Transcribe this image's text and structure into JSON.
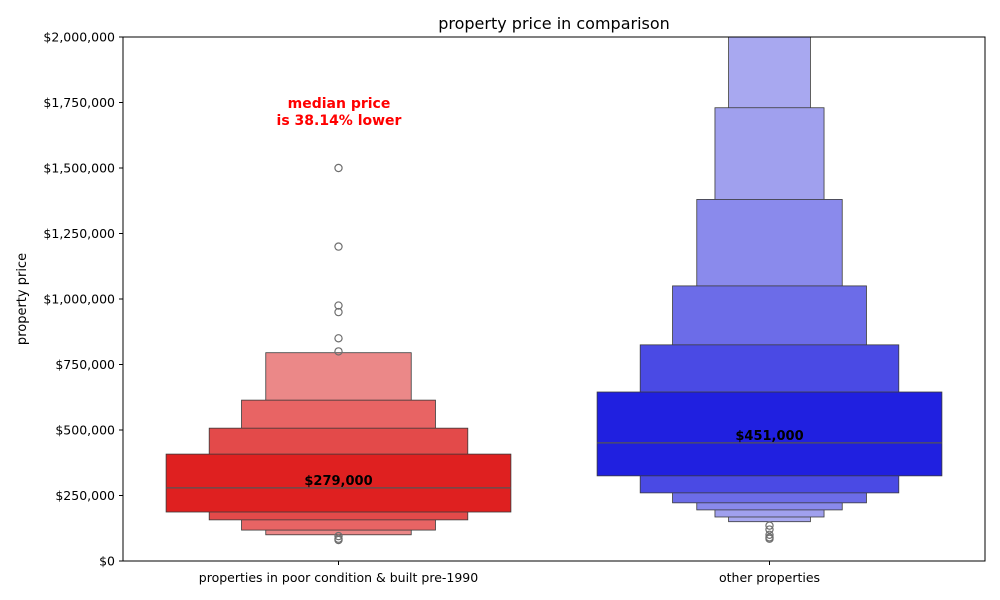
{
  "chart_data": {
    "type": "boxen",
    "title": "property price in comparison",
    "xlabel": "",
    "ylabel": "property price",
    "ylim": [
      0,
      2000000
    ],
    "yticks": [
      0,
      250000,
      500000,
      750000,
      1000000,
      1250000,
      1500000,
      1750000,
      2000000
    ],
    "ytick_labels": [
      "$0",
      "$250,000",
      "$500,000",
      "$750,000",
      "$1,000,000",
      "$1,250,000",
      "$1,500,000",
      "$1,750,000",
      "$2,000,000"
    ],
    "grid": false,
    "annotation": "median price\nis 38.14% lower",
    "annotation_color": "#ff0000",
    "categories": [
      "properties in poor condition & built pre-1990",
      "other properties"
    ],
    "series": [
      {
        "category": "properties in poor condition & built pre-1990",
        "median": 279000,
        "median_label": "$279,000",
        "color": "#e02020",
        "boxes": [
          {
            "low": 187000,
            "high": 408000,
            "color": "#df2020"
          },
          {
            "low": 157000,
            "high": 507000,
            "color": "#e34a4a"
          },
          {
            "low": 118000,
            "high": 614000,
            "color": "#e86464"
          },
          {
            "low": 100000,
            "high": 795000,
            "color": "#eb8888"
          }
        ],
        "outliers": [
          80000,
          85000,
          95000,
          800000,
          850000,
          950000,
          975000,
          1200000,
          1500000
        ]
      },
      {
        "category": "other properties",
        "median": 451000,
        "median_label": "$451,000",
        "color": "#2020e0",
        "boxes": [
          {
            "low": 325000,
            "high": 645000,
            "color": "#2020e0"
          },
          {
            "low": 260000,
            "high": 825000,
            "color": "#4a4ae4"
          },
          {
            "low": 222000,
            "high": 1050000,
            "color": "#6c6ce8"
          },
          {
            "low": 195000,
            "high": 1380000,
            "color": "#8a8aec"
          },
          {
            "low": 168000,
            "high": 1730000,
            "color": "#a0a0ee"
          },
          {
            "low": 150000,
            "high": 2000000,
            "color": "#a8a8f0"
          }
        ],
        "outliers": [
          85000,
          90000,
          100000,
          120000,
          135000
        ]
      }
    ]
  }
}
